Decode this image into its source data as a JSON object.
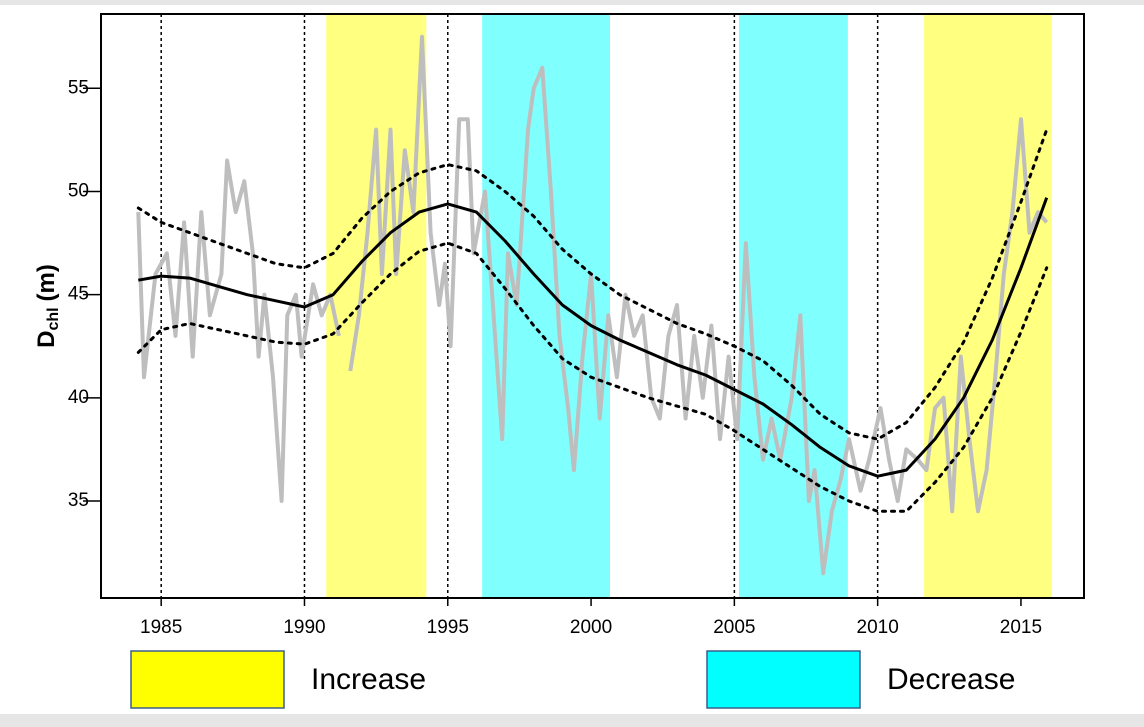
{
  "chart_data": {
    "type": "line",
    "y_label": {
      "main": "D",
      "sub": "chl",
      "unit": "(m)"
    },
    "xlim": [
      1982.9,
      2017.2
    ],
    "ylim": [
      30.3,
      58.6
    ],
    "xticks": [
      1985,
      1990,
      1995,
      2000,
      2005,
      2010,
      2015
    ],
    "yticks": [
      35,
      40,
      45,
      50,
      55
    ],
    "vlines": [
      1985,
      1990,
      1995,
      2005,
      2010
    ],
    "regions": [
      {
        "x": [
          1990.76,
          1994.25
        ],
        "color": "#ffff80"
      },
      {
        "x": [
          1996.2,
          2000.66
        ],
        "color": "#80ffff"
      },
      {
        "x": [
          2005.16,
          2008.96
        ],
        "color": "#80ffff"
      },
      {
        "x": [
          2011.62,
          2016.08
        ],
        "color": "#ffff80"
      }
    ],
    "legend": [
      {
        "label": "Increase",
        "color": "#ffff00"
      },
      {
        "label": "Decrease",
        "color": "#00ffff"
      }
    ],
    "series": [
      {
        "color": "#bebebe",
        "style": "solid",
        "width": 4,
        "x": [
          1984.2,
          1984.4,
          1984.8,
          1985.2,
          1985.5,
          1985.8,
          1986.1,
          1986.4,
          1986.7,
          1987.1,
          1987.3,
          1987.6,
          1987.9,
          1988.2,
          1988.4,
          1988.6,
          1988.9,
          1989.2,
          1989.4,
          1989.7,
          1989.9,
          1990.3,
          1990.6,
          1990.9,
          1991.2,
          1991.4,
          1991.6,
          1991.9,
          1992.2,
          1992.5,
          1992.7,
          1993.0,
          1993.2,
          1993.5,
          1993.8,
          1994.1,
          1994.4,
          1994.7,
          1994.9,
          1995.1,
          1995.4,
          1995.7,
          1995.9,
          1996.3,
          1996.6,
          1996.9,
          1997.1,
          1997.4,
          1997.8,
          1998.0,
          1998.3,
          1998.6,
          1998.9,
          1999.2,
          1999.4,
          1999.7,
          2000.0,
          2000.3,
          2000.6,
          2000.9,
          2001.2,
          2001.5,
          2001.8,
          2002.1,
          2002.4,
          2002.7,
          2003.0,
          2003.3,
          2003.6,
          2003.9,
          2004.2,
          2004.5,
          2004.8,
          2005.1,
          2005.4,
          2005.7,
          2006.0,
          2006.3,
          2006.6,
          2007.0,
          2007.3,
          2007.6,
          2007.8,
          2008.1,
          2008.4,
          2008.7,
          2009.0,
          2009.4,
          2009.7,
          2010.1,
          2010.4,
          2010.7,
          2011.0,
          2011.4,
          2011.7,
          2012.0,
          2012.3,
          2012.6,
          2012.9,
          2013.2,
          2013.5,
          2013.8,
          2014.1,
          2014.4,
          2014.7,
          2015.0,
          2015.3,
          2015.6,
          2015.9
        ],
        "values": [
          49,
          41,
          46,
          47,
          43,
          48.5,
          42,
          49,
          44,
          46,
          51.5,
          49,
          50.5,
          47,
          42,
          45,
          41,
          35,
          44,
          45,
          42,
          45.5,
          44,
          45,
          43,
          null,
          41.3,
          44,
          48,
          53,
          46,
          53,
          46,
          52,
          49,
          57.5,
          48,
          44.5,
          46.5,
          42.5,
          53.5,
          53.5,
          47,
          50,
          44,
          38,
          47,
          44.5,
          53,
          55,
          56,
          50,
          43,
          39.5,
          36.5,
          42,
          46,
          39,
          44,
          41,
          45,
          43,
          44,
          40,
          39,
          43,
          44.5,
          39,
          43,
          40,
          43.5,
          38,
          42,
          38,
          47.5,
          41,
          37,
          39,
          37,
          40,
          44,
          35,
          36.5,
          31.5,
          34.5,
          36,
          38,
          35.5,
          37,
          39.5,
          37,
          35,
          37.5,
          37,
          36.5,
          39.5,
          40,
          34.5,
          42,
          38,
          34.5,
          36.5,
          41,
          46,
          49,
          53.5,
          48,
          49,
          48.5
        ]
      },
      {
        "color": "#000000",
        "style": "solid",
        "width": 3,
        "x": [
          1984.2,
          1985,
          1986,
          1987,
          1988,
          1989,
          1990,
          1991,
          1992,
          1993,
          1994,
          1995,
          1996,
          1997,
          1998,
          1999,
          2000,
          2001,
          2002,
          2003,
          2004,
          2005,
          2006,
          2007,
          2008,
          2009,
          2010,
          2011,
          2012,
          2013,
          2014,
          2015,
          2015.9
        ],
        "values": [
          45.7,
          45.9,
          45.8,
          45.4,
          45.0,
          44.7,
          44.4,
          45.0,
          46.6,
          48.0,
          49.0,
          49.4,
          49.0,
          47.6,
          46.0,
          44.5,
          43.5,
          42.8,
          42.2,
          41.6,
          41.1,
          40.4,
          39.7,
          38.7,
          37.6,
          36.7,
          36.2,
          36.5,
          38.0,
          40.0,
          42.8,
          46.3,
          49.7
        ]
      },
      {
        "color": "#000000",
        "style": "dotted",
        "width": 3,
        "x": [
          1984.2,
          1985,
          1986,
          1987,
          1988,
          1989,
          1990,
          1991,
          1992,
          1993,
          1994,
          1995,
          1996,
          1997,
          1998,
          1999,
          2000,
          2001,
          2002,
          2003,
          2004,
          2005,
          2006,
          2007,
          2008,
          2009,
          2010,
          2011,
          2012,
          2013,
          2014,
          2015,
          2015.9
        ],
        "values": [
          49.2,
          48.5,
          48.0,
          47.5,
          47.0,
          46.5,
          46.3,
          47.0,
          48.7,
          50.0,
          50.9,
          51.3,
          51.0,
          50.0,
          48.8,
          47.2,
          46.0,
          45.0,
          44.3,
          43.6,
          43.1,
          42.5,
          41.8,
          40.6,
          39.2,
          38.3,
          38.0,
          38.8,
          40.5,
          42.7,
          45.8,
          49.5,
          53.0
        ]
      },
      {
        "color": "#000000",
        "style": "dotted",
        "width": 3,
        "x": [
          1984.2,
          1985,
          1986,
          1987,
          1988,
          1989,
          1990,
          1991,
          1992,
          1993,
          1994,
          1995,
          1996,
          1997,
          1998,
          1999,
          2000,
          2001,
          2002,
          2003,
          2004,
          2005,
          2006,
          2007,
          2008,
          2009,
          2010,
          2011,
          2012,
          2013,
          2014,
          2015,
          2015.9
        ],
        "values": [
          42.2,
          43.3,
          43.6,
          43.3,
          43.0,
          42.7,
          42.6,
          43.1,
          44.6,
          46.0,
          47.1,
          47.5,
          47.0,
          45.3,
          43.5,
          41.9,
          41.0,
          40.5,
          40.0,
          39.6,
          39.2,
          38.4,
          37.5,
          36.6,
          35.7,
          35.0,
          34.5,
          34.5,
          35.9,
          37.6,
          40.0,
          43.2,
          46.3
        ]
      }
    ]
  }
}
